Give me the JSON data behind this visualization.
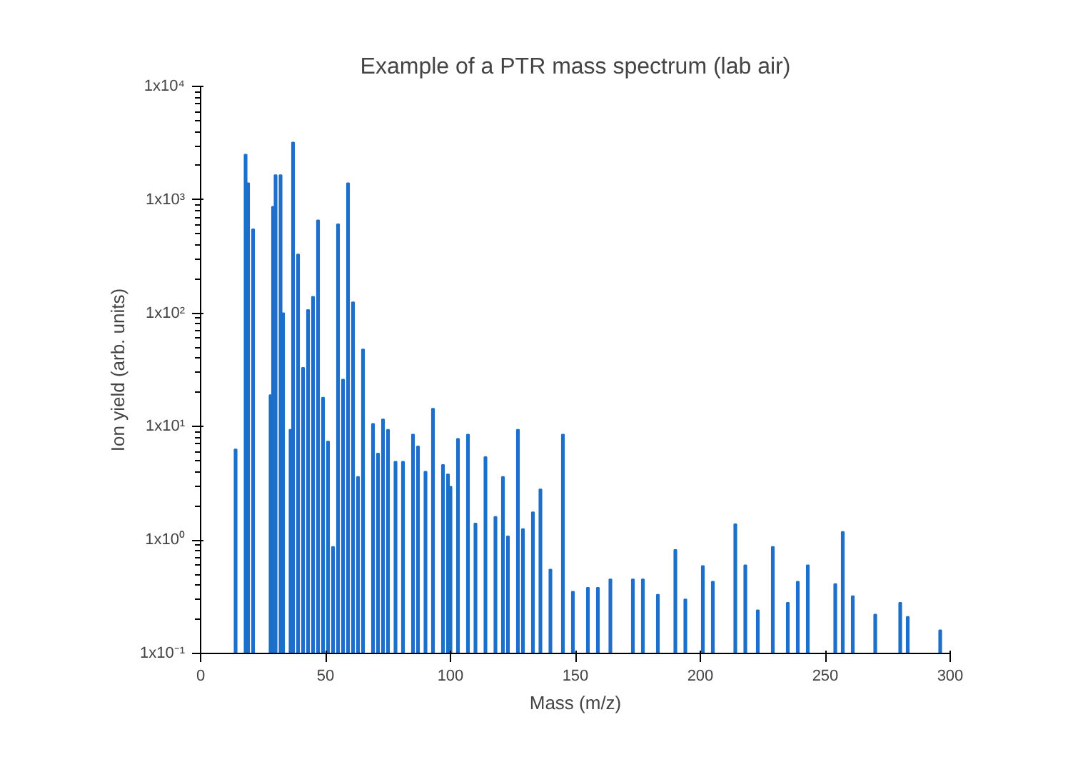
{
  "chart_data": {
    "type": "bar",
    "title": "Example of a PTR mass spectrum (lab air)",
    "xlabel": "Mass (m/z)",
    "ylabel": "Ion yield (arb. units)",
    "x": [
      14,
      18,
      19,
      21,
      28,
      29,
      30,
      32,
      33,
      36,
      37,
      39,
      41,
      43,
      45,
      47,
      49,
      51,
      53,
      55,
      57,
      59,
      61,
      63,
      65,
      69,
      71,
      73,
      75,
      78,
      81,
      85,
      87,
      90,
      93,
      97,
      99,
      100,
      103,
      107,
      110,
      114,
      118,
      121,
      123,
      127,
      129,
      133,
      136,
      140,
      145,
      149,
      155,
      159,
      164,
      173,
      177,
      183,
      190,
      194,
      201,
      205,
      214,
      218,
      223,
      229,
      235,
      239,
      243,
      254,
      257,
      261,
      270,
      280,
      283,
      296
    ],
    "values": [
      6.3,
      2500,
      1400,
      550,
      19,
      870,
      1650,
      1650,
      100,
      9.4,
      3200,
      330,
      33,
      107,
      140,
      660,
      18,
      7.4,
      0.87,
      610,
      26,
      1400,
      125,
      3.6,
      48,
      10.6,
      5.8,
      11.6,
      9.4,
      4.9,
      4.9,
      8.5,
      6.7,
      4,
      14.4,
      4.6,
      3.8,
      2.95,
      7.8,
      8.5,
      1.4,
      5.4,
      1.6,
      3.6,
      1.08,
      9.4,
      1.25,
      1.76,
      2.8,
      0.55,
      8.5,
      0.35,
      0.38,
      0.38,
      0.45,
      0.45,
      0.45,
      0.33,
      0.82,
      0.3,
      0.59,
      0.43,
      1.38,
      0.6,
      0.24,
      0.87,
      0.28,
      0.43,
      0.6,
      0.41,
      1.18,
      0.32,
      0.22,
      0.28,
      0.21,
      0.16
    ],
    "color": "#1e6fc8",
    "log": true,
    "xlim": [
      0,
      300
    ],
    "xticks": [
      0,
      50,
      100,
      150,
      200,
      250,
      300
    ],
    "ylim": [
      0.1,
      10000
    ],
    "yticks": [
      {
        "value": 0.1,
        "label": "1x10⁻¹"
      },
      {
        "value": 1,
        "label": "1x10⁰"
      },
      {
        "value": 10,
        "label": "1x10¹"
      },
      {
        "value": 100,
        "label": "1x10²"
      },
      {
        "value": 1000,
        "label": "1x10³"
      },
      {
        "value": 10000,
        "label": "1x10⁴"
      }
    ],
    "grid": false
  }
}
